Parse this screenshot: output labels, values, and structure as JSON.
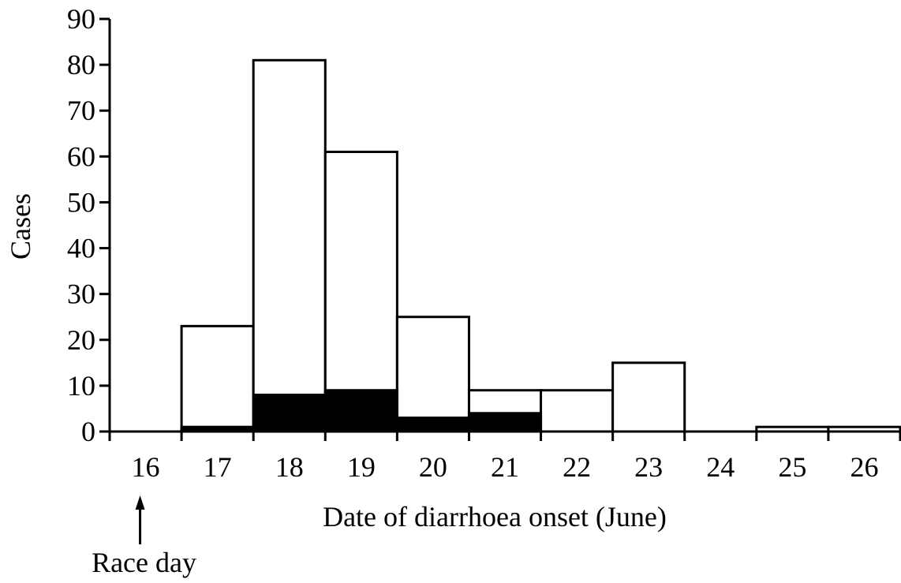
{
  "chart_data": {
    "type": "bar",
    "title": "",
    "xlabel": "Date of diarrhoea onset (June)",
    "ylabel": "Cases",
    "categories": [
      "16",
      "17",
      "18",
      "19",
      "20",
      "21",
      "22",
      "23",
      "24",
      "25",
      "26"
    ],
    "series": [
      {
        "values": [
          0,
          23,
          81,
          61,
          25,
          9,
          9,
          15,
          0,
          1,
          1
        ],
        "fill": "#ffffff",
        "stroke": "#000000"
      },
      {
        "values": [
          0,
          1,
          8,
          9,
          3,
          4,
          0,
          0,
          0,
          0,
          0
        ],
        "fill": "#000000",
        "stroke": "#000000"
      }
    ],
    "ylim": [
      0,
      90
    ],
    "yticks": [
      0,
      10,
      20,
      30,
      40,
      50,
      60,
      70,
      80,
      90
    ],
    "grid": false,
    "legend": "none",
    "annotations": [
      {
        "text": "Race day",
        "category": "16",
        "arrow": "up"
      }
    ]
  }
}
